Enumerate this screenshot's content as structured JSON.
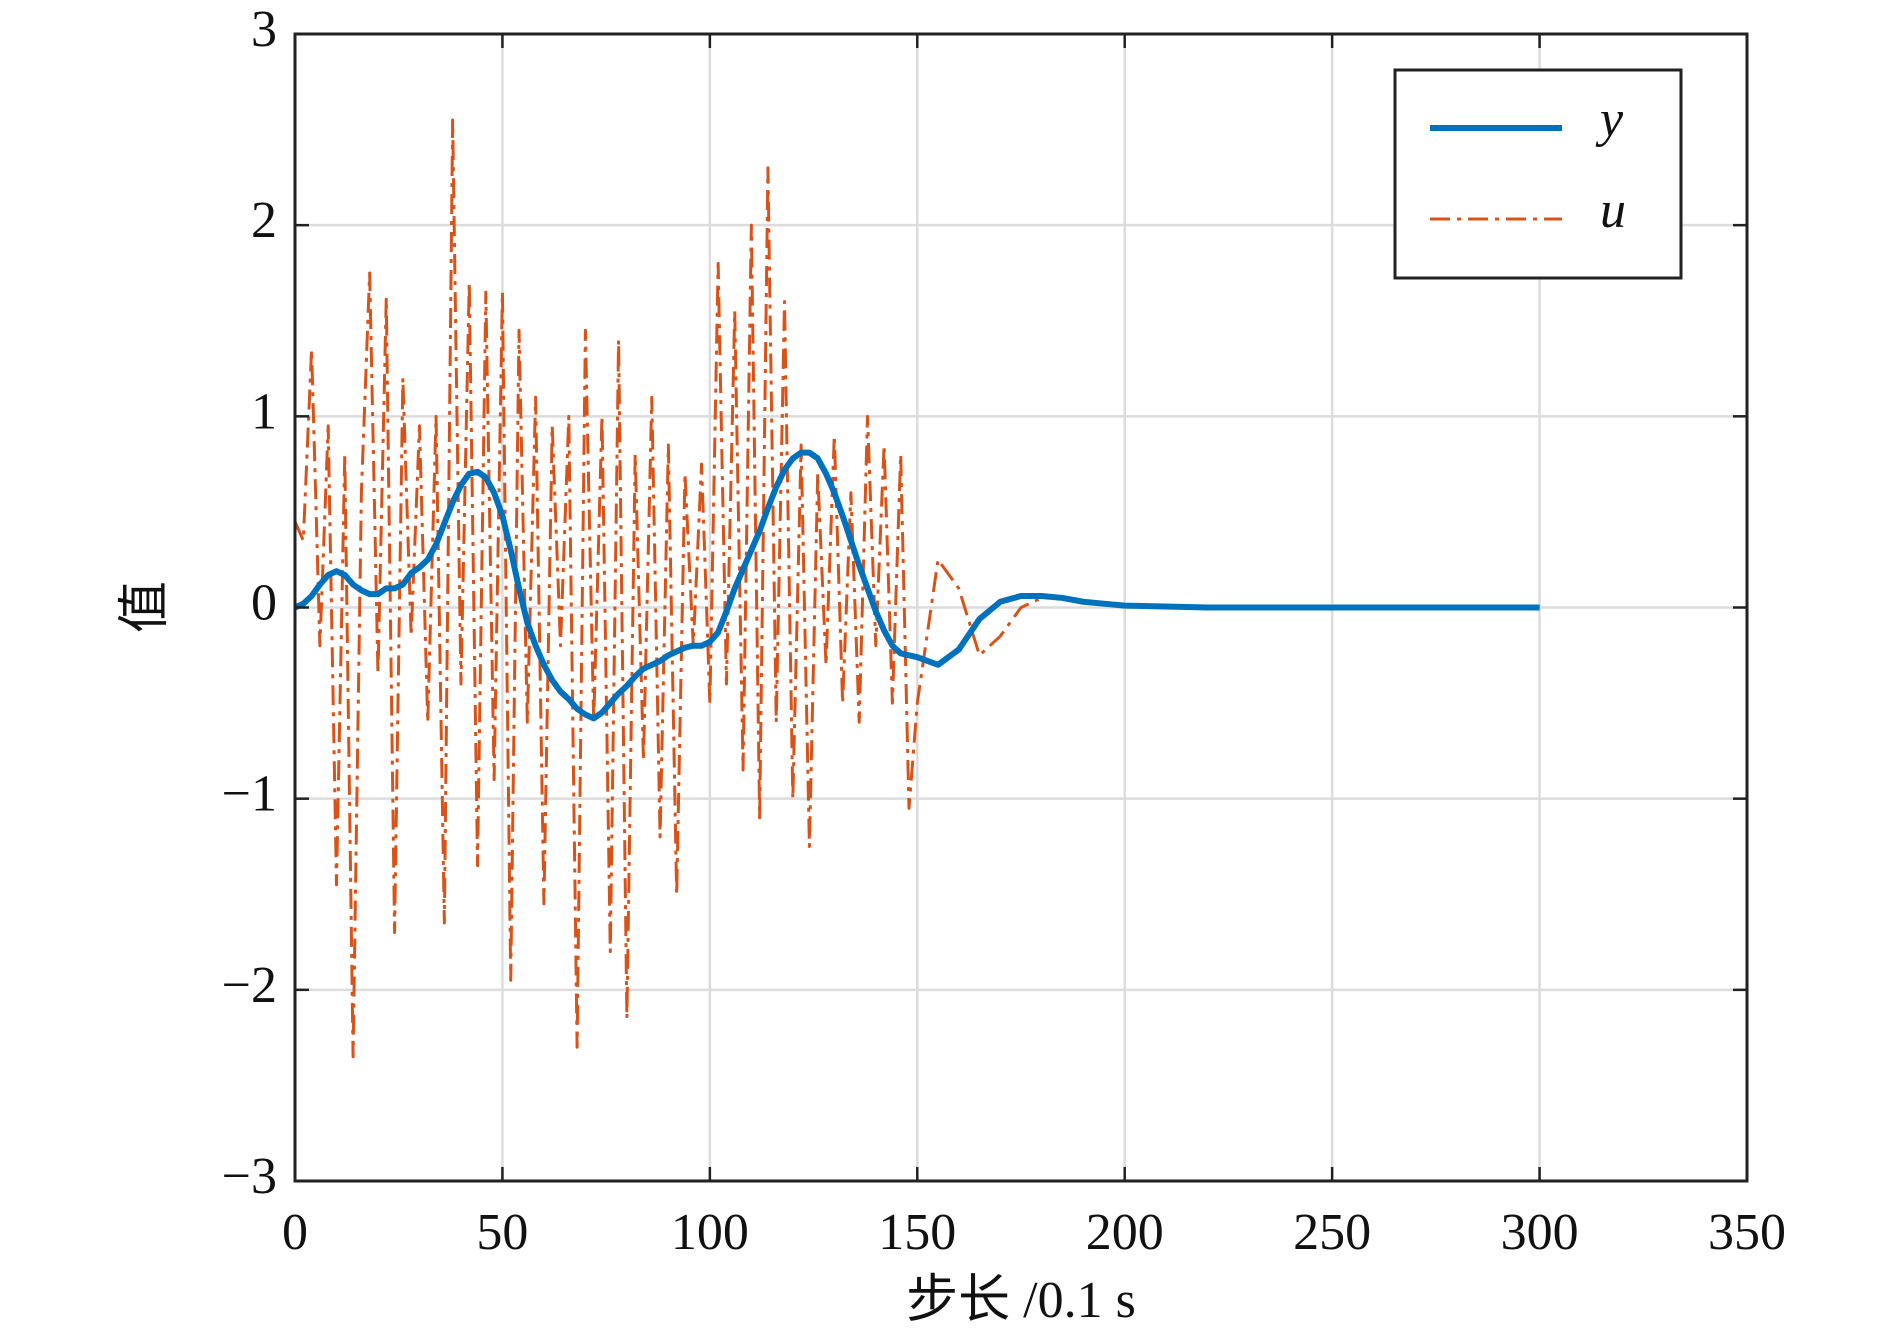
{
  "chart_data": {
    "type": "line",
    "xlabel": "步长 /0.1 s",
    "ylabel": "值",
    "x": [
      0,
      2,
      4,
      6,
      8,
      10,
      12,
      14,
      16,
      18,
      20,
      22,
      24,
      26,
      28,
      30,
      32,
      34,
      36,
      38,
      40,
      42,
      44,
      46,
      48,
      50,
      52,
      54,
      56,
      58,
      60,
      62,
      64,
      66,
      68,
      70,
      72,
      74,
      76,
      78,
      80,
      82,
      84,
      86,
      88,
      90,
      92,
      94,
      96,
      98,
      100,
      102,
      104,
      106,
      108,
      110,
      112,
      114,
      116,
      118,
      120,
      122,
      124,
      126,
      128,
      130,
      132,
      134,
      136,
      138,
      140,
      142,
      144,
      146,
      148,
      150,
      155,
      160,
      165,
      170,
      175,
      180,
      185,
      190,
      195,
      200,
      220,
      240,
      260,
      280,
      300
    ],
    "series": [
      {
        "name": "y",
        "color": "#0072bd",
        "width": 6,
        "dash": "none",
        "values": [
          0,
          0.02,
          0.06,
          0.12,
          0.17,
          0.19,
          0.17,
          0.12,
          0.09,
          0.07,
          0.07,
          0.1,
          0.1,
          0.12,
          0.18,
          0.21,
          0.25,
          0.33,
          0.44,
          0.55,
          0.64,
          0.7,
          0.71,
          0.68,
          0.6,
          0.48,
          0.3,
          0.1,
          -0.08,
          -0.2,
          -0.3,
          -0.38,
          -0.44,
          -0.48,
          -0.53,
          -0.56,
          -0.58,
          -0.55,
          -0.5,
          -0.45,
          -0.41,
          -0.36,
          -0.32,
          -0.3,
          -0.28,
          -0.25,
          -0.23,
          -0.21,
          -0.2,
          -0.2,
          -0.18,
          -0.13,
          -0.02,
          0.1,
          0.2,
          0.3,
          0.4,
          0.52,
          0.63,
          0.72,
          0.78,
          0.81,
          0.81,
          0.78,
          0.7,
          0.6,
          0.48,
          0.35,
          0.22,
          0.1,
          -0.02,
          -0.12,
          -0.2,
          -0.24,
          -0.25,
          -0.26,
          -0.3,
          -0.22,
          -0.06,
          0.03,
          0.06,
          0.06,
          0.05,
          0.03,
          0.02,
          0.01,
          0,
          0,
          0,
          0,
          0
        ]
      },
      {
        "name": "u",
        "color": "#d95319",
        "width": 3,
        "dash": "20 7 4 7",
        "values": [
          0.45,
          0.35,
          1.35,
          -0.2,
          0.95,
          -1.45,
          0.8,
          -2.35,
          0.6,
          1.75,
          -0.35,
          1.62,
          -1.7,
          1.2,
          -0.15,
          0.95,
          -0.6,
          1.0,
          -1.65,
          2.55,
          -0.4,
          1.7,
          -1.35,
          1.65,
          -0.9,
          1.65,
          -1.95,
          1.45,
          -0.6,
          1.1,
          -1.55,
          0.95,
          -0.2,
          1.0,
          -2.3,
          1.45,
          -0.6,
          1.0,
          -1.8,
          1.4,
          -2.15,
          0.8,
          -0.8,
          1.1,
          -1.2,
          0.85,
          -1.5,
          0.7,
          -0.2,
          0.75,
          -0.5,
          1.8,
          -0.4,
          1.55,
          -0.85,
          2.0,
          -1.1,
          2.3,
          -0.6,
          1.6,
          -1.0,
          0.85,
          -1.25,
          0.7,
          -0.3,
          0.9,
          -0.5,
          0.6,
          -0.6,
          1.0,
          -0.2,
          0.85,
          -0.5,
          0.8,
          -1.05,
          -0.5,
          0.25,
          0.1,
          -0.25,
          -0.15,
          0,
          0.05,
          0.05,
          0.03,
          0.02,
          0.01,
          0,
          0,
          0,
          0,
          0
        ]
      }
    ],
    "xlim": [
      0,
      350
    ],
    "xticks": [
      0,
      50,
      100,
      150,
      200,
      250,
      300,
      350
    ],
    "ylim": [
      -3,
      3
    ],
    "yticks": [
      {
        "value": -3,
        "label": "−3"
      },
      {
        "value": -2,
        "label": "−2"
      },
      {
        "value": -1,
        "label": "−1"
      },
      0,
      1,
      2,
      3
    ],
    "grid": true,
    "legend": "upper right"
  }
}
